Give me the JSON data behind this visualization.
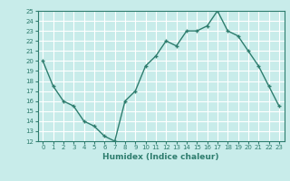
{
  "x": [
    0,
    1,
    2,
    3,
    4,
    5,
    6,
    7,
    8,
    9,
    10,
    11,
    12,
    13,
    14,
    15,
    16,
    17,
    18,
    19,
    20,
    21,
    22,
    23
  ],
  "y": [
    20,
    17.5,
    16,
    15.5,
    14,
    13.5,
    12.5,
    12,
    16,
    17,
    19.5,
    20.5,
    22,
    21.5,
    23,
    23,
    23.5,
    25,
    23,
    22.5,
    21,
    19.5,
    17.5,
    15.5
  ],
  "line_color": "#2e7d6e",
  "bg_color": "#c8ecea",
  "grid_color": "#ffffff",
  "xlabel": "Humidex (Indice chaleur)",
  "ylim": [
    12,
    25
  ],
  "xlim": [
    -0.5,
    23.5
  ],
  "yticks": [
    12,
    13,
    14,
    15,
    16,
    17,
    18,
    19,
    20,
    21,
    22,
    23,
    24,
    25
  ],
  "xticks": [
    0,
    1,
    2,
    3,
    4,
    5,
    6,
    7,
    8,
    9,
    10,
    11,
    12,
    13,
    14,
    15,
    16,
    17,
    18,
    19,
    20,
    21,
    22,
    23
  ],
  "xtick_labels": [
    "0",
    "1",
    "2",
    "3",
    "4",
    "5",
    "6",
    "7",
    "8",
    "9",
    "10",
    "11",
    "12",
    "13",
    "14",
    "15",
    "16",
    "17",
    "18",
    "19",
    "20",
    "21",
    "22",
    "23"
  ]
}
